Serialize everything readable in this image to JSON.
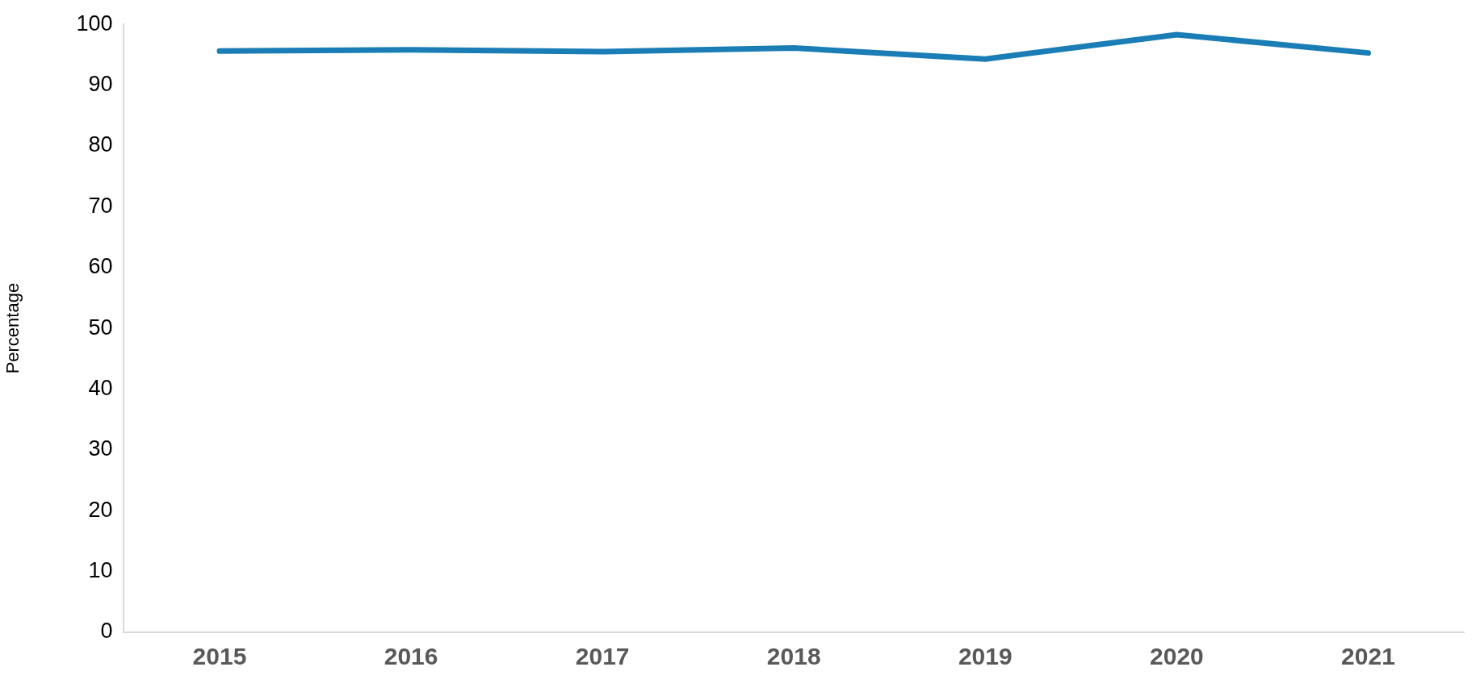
{
  "chart_data": {
    "type": "line",
    "ylabel": "Percentage",
    "categories": [
      "2015",
      "2016",
      "2017",
      "2018",
      "2019",
      "2020",
      "2021"
    ],
    "series": [
      {
        "color": "#1a7db5",
        "values": [
          95.6,
          95.8,
          95.5,
          96.1,
          94.3,
          98.3,
          95.3
        ]
      }
    ],
    "ylim": [
      0,
      100
    ],
    "yticks": [
      0,
      10,
      20,
      30,
      40,
      50,
      60,
      70,
      80,
      90,
      100
    ],
    "grid": false,
    "legend": false,
    "marker": "none",
    "line_style": "solid"
  }
}
